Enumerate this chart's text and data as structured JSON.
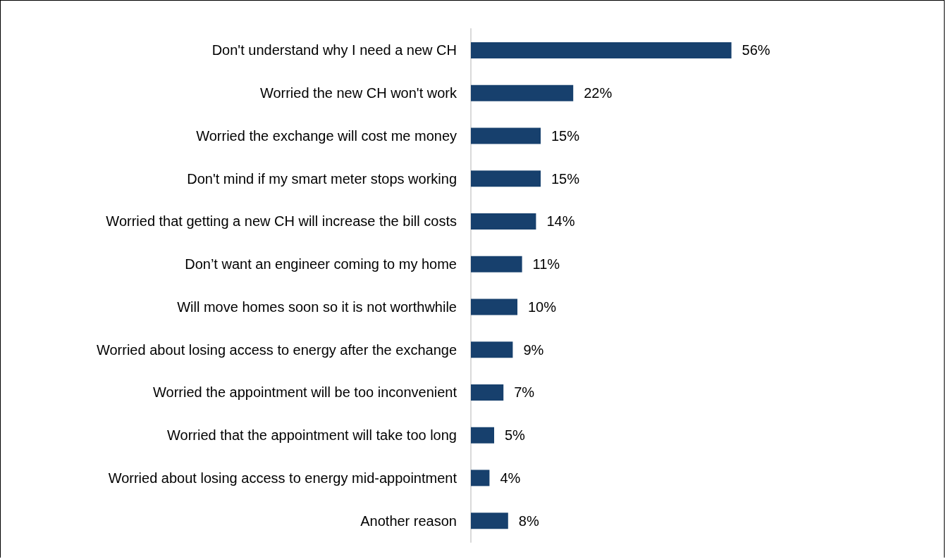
{
  "chart_data": {
    "type": "bar",
    "orientation": "horizontal",
    "categories": [
      "Don't understand why I need a new CH",
      "Worried the new CH won't work",
      "Worried the exchange will cost me money",
      "Don't mind if my smart meter stops working",
      "Worried that getting a new CH will increase the bill costs",
      "Don’t want an engineer coming to my home",
      "Will move homes soon so it is not worthwhile",
      "Worried about losing access to energy after the exchange",
      "Worried the appointment will be too inconvenient",
      "Worried that the appointment will take too long",
      "Worried about losing access to energy mid-appointment",
      "Another reason"
    ],
    "values": [
      56,
      22,
      15,
      15,
      14,
      11,
      10,
      9,
      7,
      5,
      4,
      8
    ],
    "value_labels": [
      "56%",
      "22%",
      "15%",
      "15%",
      "14%",
      "11%",
      "10%",
      "9%",
      "7%",
      "5%",
      "4%",
      "8%"
    ],
    "color": "#17406d",
    "tick_labels": "y"
  }
}
